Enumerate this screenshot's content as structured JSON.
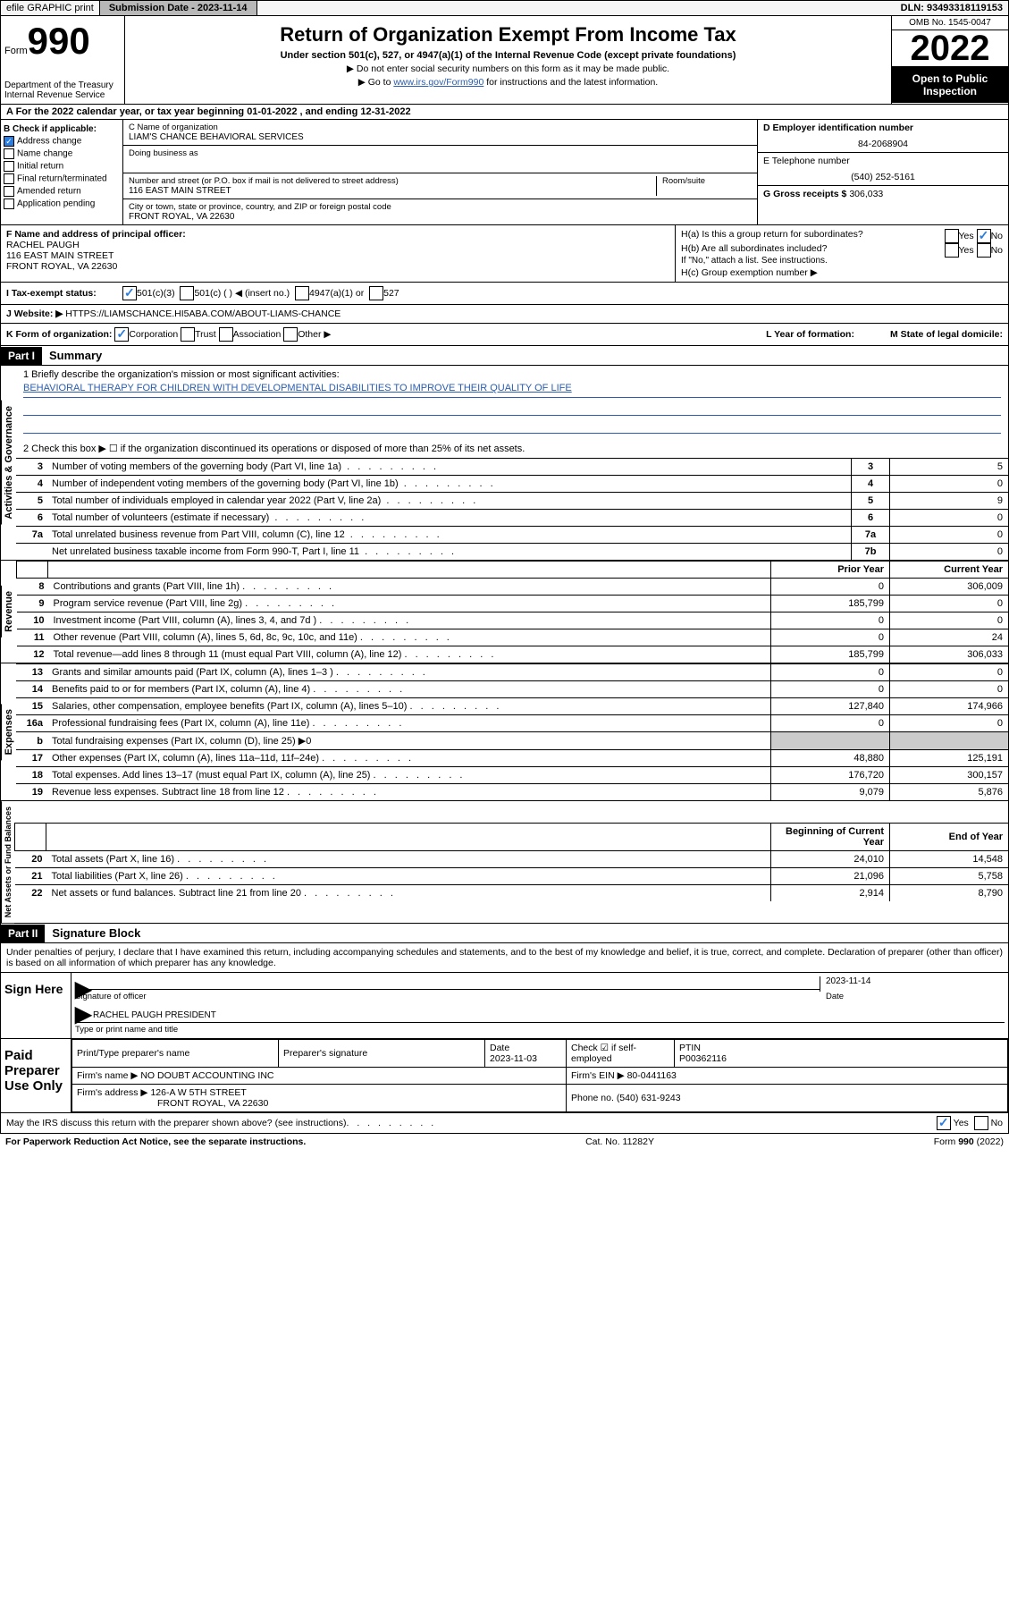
{
  "topbar": {
    "efile": "efile GRAPHIC print",
    "submission_label": "Submission Date - 2023-11-14",
    "dln": "DLN: 93493318119153"
  },
  "header": {
    "form_prefix": "Form",
    "form_number": "990",
    "dept": "Department of the Treasury",
    "irs": "Internal Revenue Service",
    "title": "Return of Organization Exempt From Income Tax",
    "subtitle": "Under section 501(c), 527, or 4947(a)(1) of the Internal Revenue Code (except private foundations)",
    "note1": "▶ Do not enter social security numbers on this form as it may be made public.",
    "note2_pre": "▶ Go to ",
    "note2_link": "www.irs.gov/Form990",
    "note2_post": " for instructions and the latest information.",
    "omb": "OMB No. 1545-0047",
    "year": "2022",
    "open": "Open to Public Inspection"
  },
  "row_a": "A For the 2022 calendar year, or tax year beginning 01-01-2022    , and ending 12-31-2022",
  "col_b": {
    "header": "B Check if applicable:",
    "items": [
      {
        "label": "Address change",
        "checked": true
      },
      {
        "label": "Name change",
        "checked": false
      },
      {
        "label": "Initial return",
        "checked": false
      },
      {
        "label": "Final return/terminated",
        "checked": false
      },
      {
        "label": "Amended return",
        "checked": false
      },
      {
        "label": "Application pending",
        "checked": false
      }
    ]
  },
  "col_c": {
    "name_label": "C Name of organization",
    "name": "LIAM'S CHANCE BEHAVIORAL SERVICES",
    "dba_label": "Doing business as",
    "dba": "",
    "street_label": "Number and street (or P.O. box if mail is not delivered to street address)",
    "room_label": "Room/suite",
    "street": "116 EAST MAIN STREET",
    "city_label": "City or town, state or province, country, and ZIP or foreign postal code",
    "city": "FRONT ROYAL, VA  22630"
  },
  "col_def": {
    "d_label": "D Employer identification number",
    "d_value": "84-2068904",
    "e_label": "E Telephone number",
    "e_value": "(540) 252-5161",
    "g_label": "G Gross receipts $",
    "g_value": "306,033"
  },
  "section_fh": {
    "f_label": "F Name and address of principal officer:",
    "f_name": "RACHEL PAUGH",
    "f_street": "116 EAST MAIN STREET",
    "f_city": "FRONT ROYAL, VA  22630",
    "ha_q": "H(a)  Is this a group return for subordinates?",
    "ha_yes": "Yes",
    "ha_no": "No",
    "hb_q": "H(b)  Are all subordinates included?",
    "hb_note": "If \"No,\" attach a list. See instructions.",
    "hc": "H(c)  Group exemption number ▶"
  },
  "status": {
    "label": "I   Tax-exempt status:",
    "c3": "501(c)(3)",
    "c": "501(c) (  ) ◀ (insert no.)",
    "a1": "4947(a)(1) or",
    "s527": "527"
  },
  "website": {
    "label": "J   Website: ▶",
    "value": "HTTPS://LIAMSCHANCE.HI5ABA.COM/ABOUT-LIAMS-CHANCE"
  },
  "korg": {
    "label": "K Form of organization:",
    "opts": [
      "Corporation",
      "Trust",
      "Association",
      "Other ▶"
    ],
    "l_label": "L Year of formation:",
    "m_label": "M State of legal domicile:"
  },
  "part1": {
    "header": "Part I",
    "title": "Summary",
    "mission_label": "1  Briefly describe the organization's mission or most significant activities:",
    "mission": "BEHAVIORAL THERAPY FOR CHILDREN WITH DEVELOPMENTAL DISABILITIES TO IMPROVE THEIR QUALITY OF LIFE",
    "line2": "2   Check this box ▶ ☐  if the organization discontinued its operations or disposed of more than 25% of its net assets.",
    "gov_rows": [
      {
        "n": "3",
        "desc": "Number of voting members of the governing body (Part VI, line 1a)",
        "box": "3",
        "val": "5"
      },
      {
        "n": "4",
        "desc": "Number of independent voting members of the governing body (Part VI, line 1b)",
        "box": "4",
        "val": "0"
      },
      {
        "n": "5",
        "desc": "Total number of individuals employed in calendar year 2022 (Part V, line 2a)",
        "box": "5",
        "val": "9"
      },
      {
        "n": "6",
        "desc": "Total number of volunteers (estimate if necessary)",
        "box": "6",
        "val": "0"
      },
      {
        "n": "7a",
        "desc": "Total unrelated business revenue from Part VIII, column (C), line 12",
        "box": "7a",
        "val": "0"
      },
      {
        "n": "",
        "desc": "Net unrelated business taxable income from Form 990-T, Part I, line 11",
        "box": "7b",
        "val": "0"
      }
    ],
    "two_col_header": {
      "prior": "Prior Year",
      "current": "Current Year"
    },
    "revenue_rows": [
      {
        "n": "8",
        "desc": "Contributions and grants (Part VIII, line 1h)",
        "p": "0",
        "c": "306,009"
      },
      {
        "n": "9",
        "desc": "Program service revenue (Part VIII, line 2g)",
        "p": "185,799",
        "c": "0"
      },
      {
        "n": "10",
        "desc": "Investment income (Part VIII, column (A), lines 3, 4, and 7d )",
        "p": "0",
        "c": "0"
      },
      {
        "n": "11",
        "desc": "Other revenue (Part VIII, column (A), lines 5, 6d, 8c, 9c, 10c, and 11e)",
        "p": "0",
        "c": "24"
      },
      {
        "n": "12",
        "desc": "Total revenue—add lines 8 through 11 (must equal Part VIII, column (A), line 12)",
        "p": "185,799",
        "c": "306,033"
      }
    ],
    "expense_rows": [
      {
        "n": "13",
        "desc": "Grants and similar amounts paid (Part IX, column (A), lines 1–3 )",
        "p": "0",
        "c": "0"
      },
      {
        "n": "14",
        "desc": "Benefits paid to or for members (Part IX, column (A), line 4)",
        "p": "0",
        "c": "0"
      },
      {
        "n": "15",
        "desc": "Salaries, other compensation, employee benefits (Part IX, column (A), lines 5–10)",
        "p": "127,840",
        "c": "174,966"
      },
      {
        "n": "16a",
        "desc": "Professional fundraising fees (Part IX, column (A), line 11e)",
        "p": "0",
        "c": "0"
      },
      {
        "n": "b",
        "desc": "Total fundraising expenses (Part IX, column (D), line 25) ▶0",
        "p": "",
        "c": "",
        "gray": true
      },
      {
        "n": "17",
        "desc": "Other expenses (Part IX, column (A), lines 11a–11d, 11f–24e)",
        "p": "48,880",
        "c": "125,191"
      },
      {
        "n": "18",
        "desc": "Total expenses. Add lines 13–17 (must equal Part IX, column (A), line 25)",
        "p": "176,720",
        "c": "300,157"
      },
      {
        "n": "19",
        "desc": "Revenue less expenses. Subtract line 18 from line 12",
        "p": "9,079",
        "c": "5,876"
      }
    ],
    "na_header": {
      "begin": "Beginning of Current Year",
      "end": "End of Year"
    },
    "na_rows": [
      {
        "n": "20",
        "desc": "Total assets (Part X, line 16)",
        "p": "24,010",
        "c": "14,548"
      },
      {
        "n": "21",
        "desc": "Total liabilities (Part X, line 26)",
        "p": "21,096",
        "c": "5,758"
      },
      {
        "n": "22",
        "desc": "Net assets or fund balances. Subtract line 21 from line 20",
        "p": "2,914",
        "c": "8,790"
      }
    ],
    "vert_labels": {
      "gov": "Activities & Governance",
      "rev": "Revenue",
      "exp": "Expenses",
      "na": "Net Assets or Fund Balances"
    }
  },
  "part2": {
    "header": "Part II",
    "title": "Signature Block",
    "declaration": "Under penalties of perjury, I declare that I have examined this return, including accompanying schedules and statements, and to the best of my knowledge and belief, it is true, correct, and complete. Declaration of preparer (other than officer) is based on all information of which preparer has any knowledge.",
    "sign_here": "Sign Here",
    "sig_officer_label": "Signature of officer",
    "sig_date_label": "Date",
    "sig_date": "2023-11-14",
    "officer_name": "RACHEL PAUGH  PRESIDENT",
    "officer_sub": "Type or print name and title",
    "paid": "Paid Preparer Use Only",
    "prep_name_label": "Print/Type preparer's name",
    "prep_sig_label": "Preparer's signature",
    "prep_date_label": "Date",
    "prep_date": "2023-11-03",
    "check_self": "Check ☑ if self-employed",
    "ptin_label": "PTIN",
    "ptin": "P00362116",
    "firm_name_label": "Firm's name    ▶",
    "firm_name": "NO DOUBT ACCOUNTING INC",
    "firm_ein_label": "Firm's EIN ▶",
    "firm_ein": "80-0441163",
    "firm_addr_label": "Firm's address ▶",
    "firm_addr1": "126-A W 5TH STREET",
    "firm_addr2": "FRONT ROYAL, VA  22630",
    "phone_label": "Phone no.",
    "phone": "(540) 631-9243",
    "may_irs": "May the IRS discuss this return with the preparer shown above? (see instructions)",
    "yes": "Yes",
    "no": "No"
  },
  "footer": {
    "pra": "For Paperwork Reduction Act Notice, see the separate instructions.",
    "cat": "Cat. No. 11282Y",
    "form": "Form 990 (2022)"
  }
}
